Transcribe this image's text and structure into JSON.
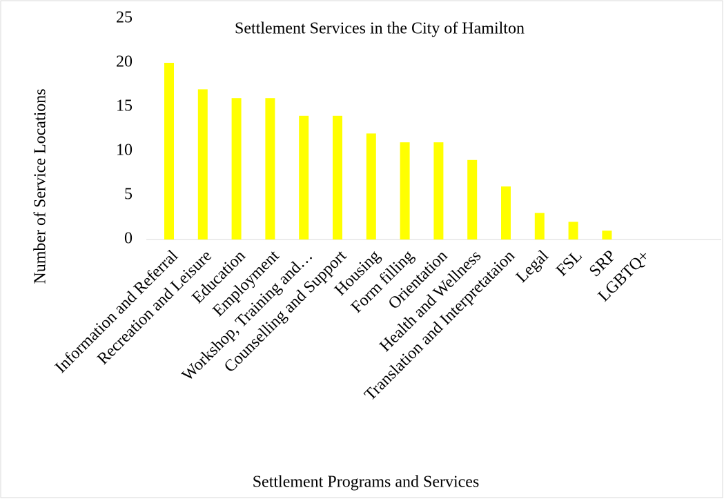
{
  "chart_data": {
    "type": "bar",
    "title": "Settlement Services in the City of Hamilton",
    "x_label": "Settlement Programs and Services",
    "y_label": "Number of Service Locations",
    "categories": [
      "Information and Referral",
      "Recreation and Leisure",
      "Education",
      "Employment",
      "Workshop, Training and…",
      "Counselling and Support",
      "Housing",
      "Form filling",
      "Orientation",
      "Health and Wellness",
      "Translation and Interpretataion",
      "Legal",
      "FSL",
      "SRP",
      "LGBTQ+"
    ],
    "values": [
      20,
      17,
      16,
      16,
      14,
      14,
      12,
      11,
      11,
      9,
      6,
      3,
      2,
      1,
      0
    ],
    "color": "#ffff00",
    "ylim": [
      0,
      25
    ],
    "yticks": [
      0,
      5,
      10,
      15,
      20,
      25
    ],
    "grid": false
  }
}
